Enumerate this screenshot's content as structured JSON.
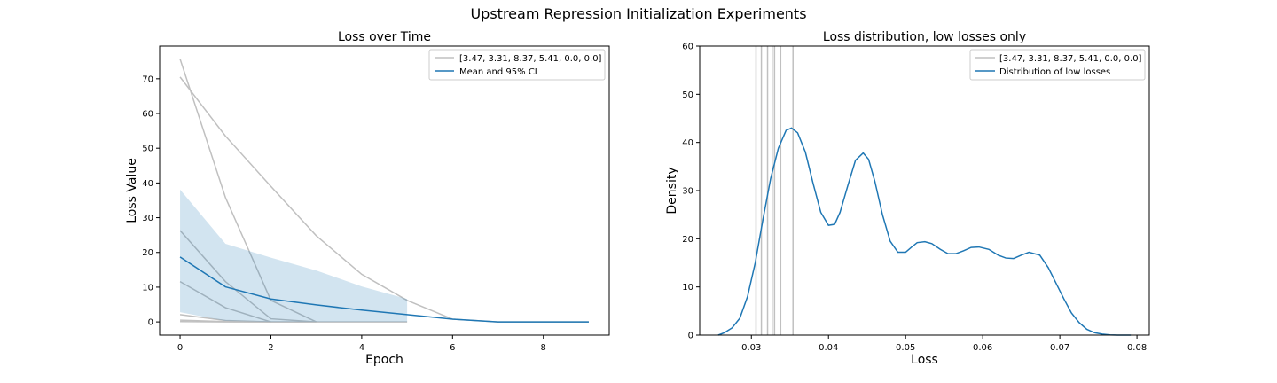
{
  "figure": {
    "suptitle": "Upstream Repression Initialization Experiments"
  },
  "colors": {
    "run_gray": "#c0c0c0",
    "mean_blue": "#1f77b4",
    "ci_fill": "#1f77b4"
  },
  "chart_data": [
    {
      "type": "line",
      "title": "Loss over Time",
      "xlabel": "Epoch",
      "ylabel": "Loss Value",
      "xlim": [
        -0.45,
        9.45
      ],
      "ylim": [
        -3.8,
        79.4
      ],
      "xticks": [
        0,
        2,
        4,
        6,
        8
      ],
      "yticks": [
        0,
        10,
        20,
        30,
        40,
        50,
        60,
        70
      ],
      "grid": false,
      "legend_placement": "top-right",
      "legend": [
        "[3.47, 3.31, 8.37, 5.41, 0.0, 0.0]",
        "Mean and 95% CI"
      ],
      "runs": [
        {
          "x": [
            0,
            1,
            2,
            3,
            4,
            5,
            6,
            7,
            8,
            9
          ],
          "y": [
            70.5,
            53.5,
            39,
            24.8,
            13.7,
            6.2,
            0.8,
            0,
            0,
            0
          ]
        },
        {
          "x": [
            0,
            1,
            2,
            3
          ],
          "y": [
            75.7,
            35.8,
            6.2,
            0
          ]
        },
        {
          "x": [
            0,
            1,
            2,
            3
          ],
          "y": [
            26.3,
            11.6,
            0.9,
            0
          ]
        },
        {
          "x": [
            0,
            1,
            2,
            3
          ],
          "y": [
            11.6,
            4.1,
            0,
            0
          ]
        },
        {
          "x": [
            0,
            1,
            2
          ],
          "y": [
            2.1,
            0.4,
            0
          ]
        },
        {
          "x": [
            0,
            1,
            2
          ],
          "y": [
            0.5,
            0.1,
            0
          ]
        },
        {
          "x": [
            0,
            1,
            2,
            3,
            4,
            5
          ],
          "y": [
            0.1,
            0,
            0,
            0,
            0,
            0
          ]
        }
      ],
      "mean": {
        "x": [
          0,
          1,
          2,
          3,
          4,
          5,
          6,
          7,
          8,
          9
        ],
        "y": [
          18.7,
          10.1,
          6.6,
          4.9,
          3.4,
          2.1,
          0.8,
          0,
          0,
          0
        ]
      },
      "ci": {
        "x": [
          0,
          1,
          2,
          3,
          4,
          5
        ],
        "lower": [
          2.8,
          0.3,
          0,
          0,
          0,
          0
        ],
        "upper": [
          38.1,
          22.5,
          18.5,
          14.8,
          10.2,
          6.6
        ]
      }
    },
    {
      "type": "line",
      "title": "Loss distribution, low losses only",
      "xlabel": "Loss",
      "ylabel": "Density",
      "xlim": [
        0.0233,
        0.0816
      ],
      "ylim": [
        0,
        60
      ],
      "xticks": [
        0.03,
        0.04,
        0.05,
        0.06,
        0.07,
        0.08
      ],
      "xticklabels": [
        "0.03",
        "0.04",
        "0.05",
        "0.06",
        "0.07",
        "0.08"
      ],
      "yticks": [
        0,
        10,
        20,
        30,
        40,
        50,
        60
      ],
      "grid": false,
      "legend_placement": "top-right",
      "legend": [
        "[3.47, 3.31, 8.37, 5.41, 0.0, 0.0]",
        "Distribution of low losses"
      ],
      "vlines": [
        0.0306,
        0.0313,
        0.0321,
        0.0327,
        0.033,
        0.0338,
        0.0354
      ],
      "density": {
        "x": [
          0.0257,
          0.0265,
          0.0275,
          0.0285,
          0.0295,
          0.0305,
          0.0315,
          0.0325,
          0.0335,
          0.0345,
          0.0352,
          0.036,
          0.037,
          0.038,
          0.039,
          0.04,
          0.0408,
          0.0415,
          0.0425,
          0.0435,
          0.0445,
          0.0452,
          0.046,
          0.047,
          0.048,
          0.049,
          0.05,
          0.0508,
          0.0515,
          0.0525,
          0.0534,
          0.0545,
          0.0555,
          0.0565,
          0.0575,
          0.0585,
          0.0595,
          0.0608,
          0.062,
          0.063,
          0.064,
          0.065,
          0.066,
          0.0674,
          0.0685,
          0.0695,
          0.0705,
          0.0715,
          0.0725,
          0.0735,
          0.0745,
          0.0755,
          0.0765,
          0.0775,
          0.0785,
          0.0792
        ],
        "y": [
          0,
          0.5,
          1.5,
          3.5,
          8,
          15,
          24,
          32.5,
          38.8,
          42.5,
          43,
          42,
          38,
          31.5,
          25.5,
          22.8,
          23,
          25.5,
          31,
          36.3,
          37.8,
          36.5,
          32,
          25,
          19.5,
          17.2,
          17.2,
          18.3,
          19.2,
          19.4,
          19,
          17.8,
          16.9,
          16.9,
          17.5,
          18.2,
          18.3,
          17.8,
          16.6,
          16,
          15.9,
          16.6,
          17.2,
          16.6,
          14,
          10.8,
          7.6,
          4.6,
          2.6,
          1.2,
          0.5,
          0.2,
          0.05,
          0,
          0,
          0
        ]
      }
    }
  ]
}
